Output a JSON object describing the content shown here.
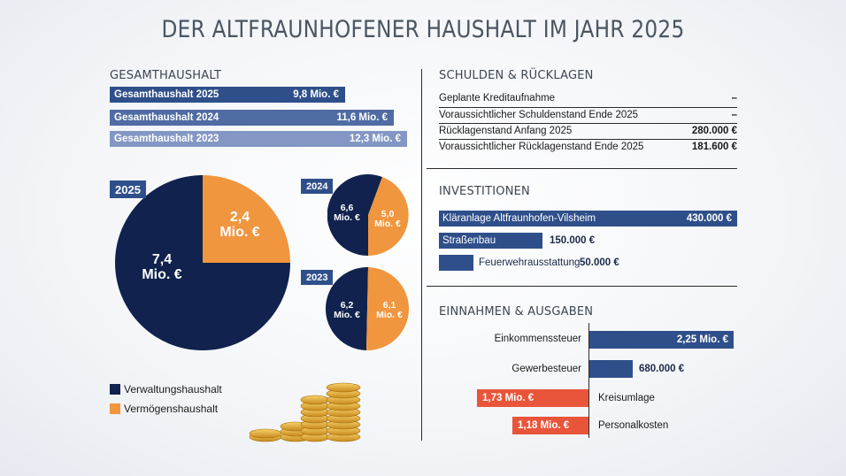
{
  "title": "DER ALTFRAUNHOFENER HAUSHALT IM JAHR 2025",
  "colors": {
    "navy": "#10224d",
    "orange": "#f0963e",
    "bar_blue": "#2f4f8a",
    "red": "#e8553a"
  },
  "gesamt": {
    "heading": "GESAMTHAUSHALT",
    "rows": [
      {
        "label": "Gesamthaushalt 2025",
        "value_text": "9,8 Mio. €",
        "color": "#2f4f8a"
      },
      {
        "label": "Gesamthaushalt 2024",
        "value_text": "11,6 Mio. €",
        "color": "#4f6ca3"
      },
      {
        "label": "Gesamthaushalt 2023",
        "value_text": "12,3 Mio. €",
        "color": "#8497c4"
      }
    ]
  },
  "pies": {
    "p2025": {
      "tag": "2025",
      "navy_line1": "7,4",
      "navy_line2": "Mio. €",
      "orange_line1": "2,4",
      "orange_line2": "Mio. €"
    },
    "p2024": {
      "tag": "2024",
      "navy_line1": "6,6",
      "navy_line2": "Mio. €",
      "orange_line1": "5,0",
      "orange_line2": "Mio. €"
    },
    "p2023": {
      "tag": "2023",
      "navy_line1": "6,2",
      "navy_line2": "Mio. €",
      "orange_line1": "6,1",
      "orange_line2": "Mio. €"
    }
  },
  "legend": {
    "verwaltung": "Verwaltungshaushalt",
    "vermoegen": "Vermögenshaushalt"
  },
  "schulden": {
    "heading": "SCHULDEN & RÜCKLAGEN",
    "rows": [
      {
        "label": "Geplante Kreditaufnahme",
        "value": "–"
      },
      {
        "label": "Voraussichtlicher Schuldenstand Ende 2025",
        "value": "–"
      },
      {
        "label": "Rücklagenstand Anfang 2025",
        "value": "280.000 €"
      },
      {
        "label": "Voraussichtlicher Rücklagenstand Ende 2025",
        "value": "181.600 €"
      }
    ]
  },
  "investitionen": {
    "heading": "INVESTITIONEN",
    "items": [
      {
        "label": "Kläranlage Altfraunhofen-Vilsheim",
        "value": "430.000 €"
      },
      {
        "label": "Straßenbau",
        "value": "150.000 €"
      },
      {
        "label": "Feuerwehrausstattung",
        "value": "50.000 €"
      }
    ]
  },
  "einnahmen": {
    "heading": "EINNAHMEN & AUSGABEN",
    "items": [
      {
        "label": "Einkommenssteuer",
        "value": "2,25 Mio. €"
      },
      {
        "label": "Gewerbesteuer",
        "value": "680.000 €"
      },
      {
        "label": "Kreisumlage",
        "value": "1,73 Mio. €"
      },
      {
        "label": "Personalkosten",
        "value": "1,18 Mio. €"
      }
    ]
  },
  "chart_data": [
    {
      "type": "bar",
      "categories": [
        "Gesamthaushalt 2025",
        "Gesamthaushalt 2024",
        "Gesamthaushalt 2023"
      ],
      "values": [
        9.8,
        11.6,
        12.3
      ],
      "title": "GESAMTHAUSHALT"
    },
    {
      "type": "pie",
      "categories": [
        "Verwaltungshaushalt",
        "Vermögenshaushalt"
      ],
      "values": [
        7.4,
        2.4
      ],
      "title": "2025"
    },
    {
      "type": "pie",
      "categories": [
        "Verwaltungshaushalt",
        "Vermögenshaushalt"
      ],
      "values": [
        6.6,
        5.0
      ],
      "title": "2024"
    },
    {
      "type": "pie",
      "categories": [
        "Verwaltungshaushalt",
        "Vermögenshaushalt"
      ],
      "values": [
        6.2,
        6.1
      ],
      "title": "2023"
    },
    {
      "type": "bar",
      "categories": [
        "Kläranlage Altfraunhofen-Vilsheim",
        "Straßenbau",
        "Feuerwehrausstattung"
      ],
      "values": [
        430000,
        150000,
        50000
      ],
      "title": "INVESTITIONEN"
    },
    {
      "type": "bar",
      "categories": [
        "Einkommenssteuer",
        "Gewerbesteuer",
        "Kreisumlage",
        "Personalkosten"
      ],
      "values": [
        2250000,
        680000,
        -1730000,
        -1180000
      ],
      "title": "EINNAHMEN & AUSGABEN"
    }
  ]
}
